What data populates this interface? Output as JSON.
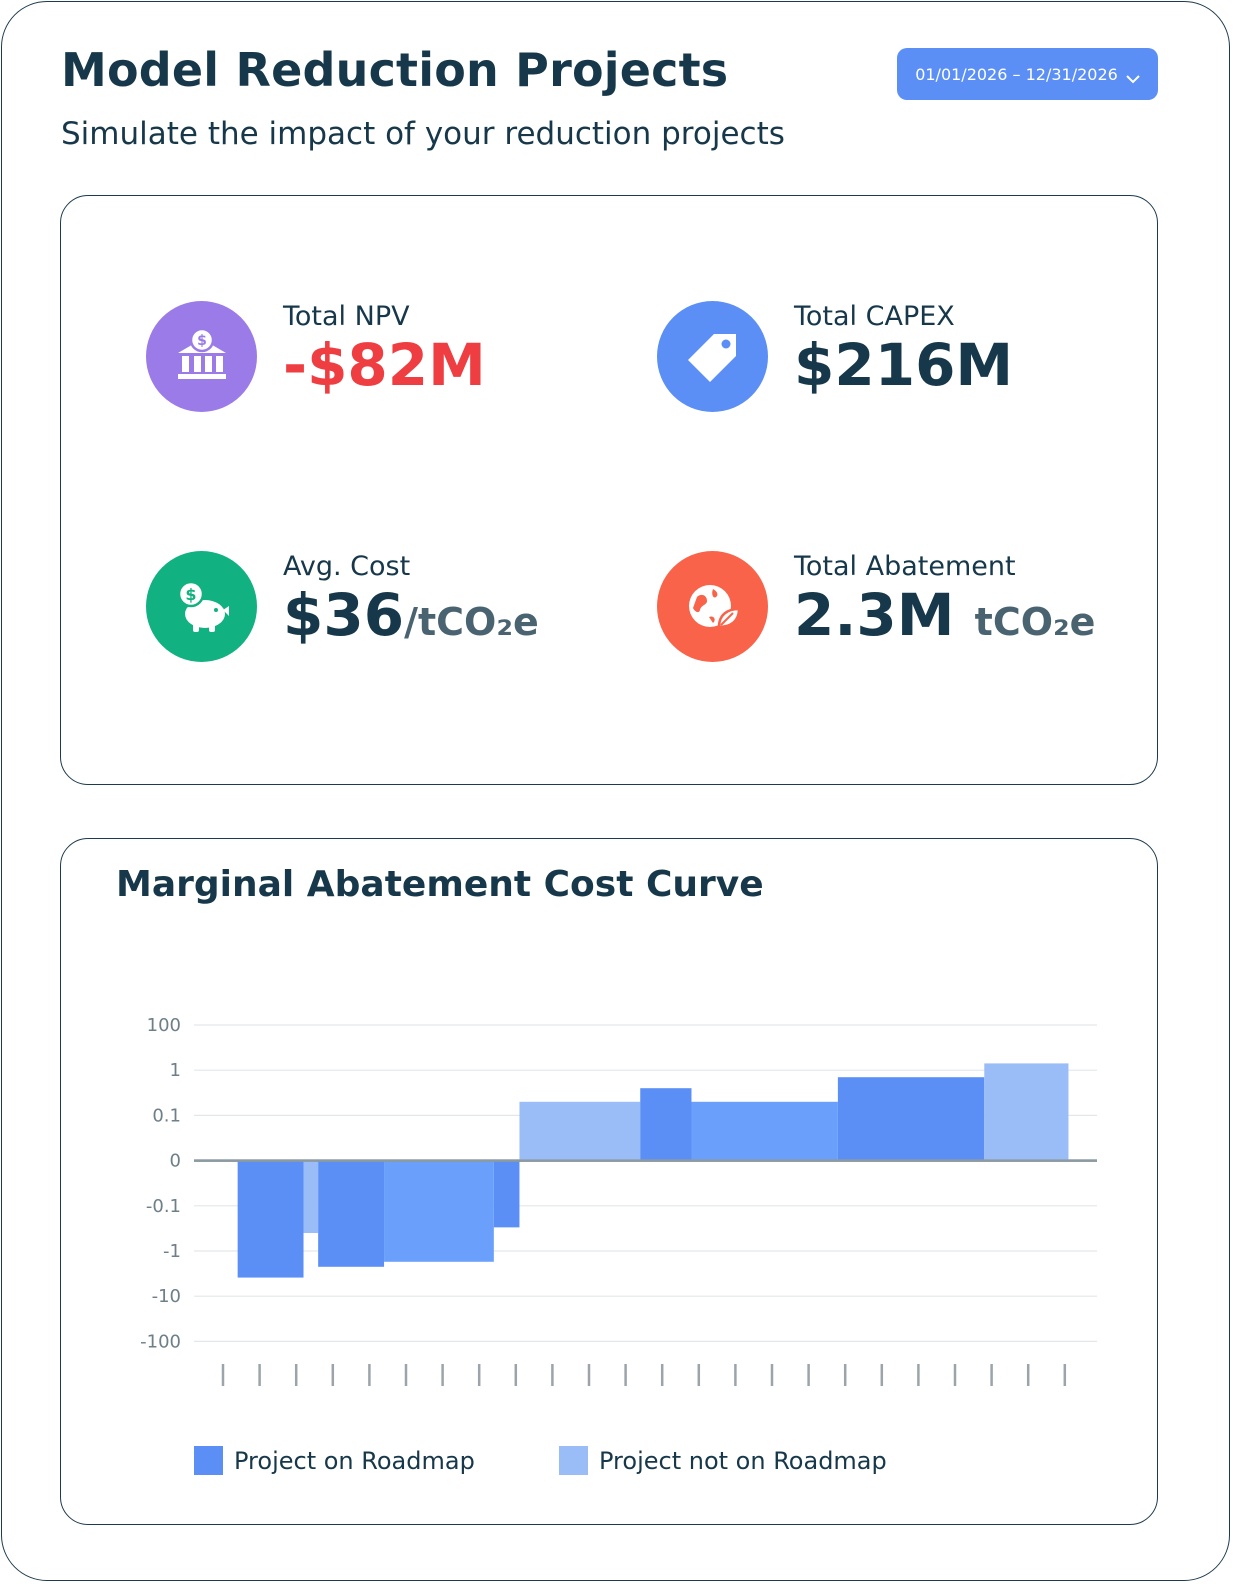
{
  "header": {
    "title": "Model Reduction Projects",
    "subtitle": "Simulate the impact of your reduction projects",
    "date_range": "01/01/2026 – 12/31/2026"
  },
  "kpis": {
    "npv": {
      "label": "Total NPV",
      "value": "-$82M",
      "icon": "bank-dollar-icon",
      "color": "#9b7be8"
    },
    "capex": {
      "label": "Total CAPEX",
      "value": "$216M",
      "icon": "price-tag-icon",
      "color": "#5b8ff5"
    },
    "avg_cost": {
      "label": "Avg. Cost",
      "value": "$36",
      "unit": "/tCO₂e",
      "icon": "piggy-bank-icon",
      "color": "#12b181"
    },
    "abatement": {
      "label": "Total Abatement",
      "value": "2.3M",
      "unit": "tCO₂e",
      "icon": "globe-leaf-icon",
      "color": "#f8634a"
    }
  },
  "colors": {
    "on_roadmap": "#5b8ff5",
    "not_on_roadmap": "#9bbdf7",
    "on_roadmap_mid": "#6aa0fb",
    "title_text": "#17384a",
    "negative": "#ef3e42"
  },
  "chart_data": {
    "type": "bar",
    "title": "Marginal Abatement Cost Curve",
    "y_scale": "symlog",
    "y_ticks": [
      "100",
      "1",
      "0.1",
      "0",
      "-0.1",
      "-1",
      "-10",
      "-100"
    ],
    "x_ticks_count": 24,
    "grid": true,
    "legend_position": "bottom",
    "series_names": [
      "Project on Roadmap",
      "Project not on Roadmap"
    ],
    "bars": [
      {
        "x0": 0.9,
        "x1": 2.7,
        "value": -15,
        "series": "Project on Roadmap"
      },
      {
        "x0": 2.7,
        "x1": 3.1,
        "value": -0.4,
        "series": "Project not on Roadmap"
      },
      {
        "x0": 3.1,
        "x1": 4.9,
        "value": -5,
        "series": "Project on Roadmap"
      },
      {
        "x0": 4.9,
        "x1": 7.9,
        "value": -3,
        "series": "Project on Roadmap"
      },
      {
        "x0": 7.9,
        "x1": 8.6,
        "value": -0.3,
        "series": "Project on Roadmap"
      },
      {
        "x0": 8.6,
        "x1": 11.9,
        "value": 0.2,
        "series": "Project not on Roadmap"
      },
      {
        "x0": 11.9,
        "x1": 13.3,
        "value": 0.4,
        "series": "Project on Roadmap"
      },
      {
        "x0": 13.3,
        "x1": 17.3,
        "value": 0.2,
        "series": "Project on Roadmap"
      },
      {
        "x0": 17.3,
        "x1": 21.3,
        "value": 0.7,
        "series": "Project on Roadmap"
      },
      {
        "x0": 21.3,
        "x1": 23.6,
        "value": 2,
        "series": "Project not on Roadmap"
      }
    ]
  }
}
